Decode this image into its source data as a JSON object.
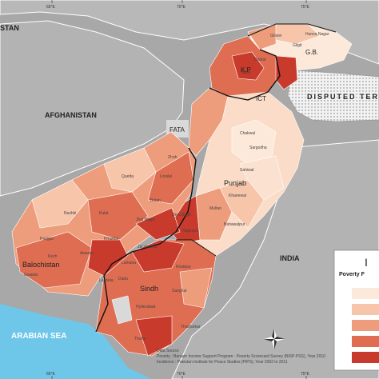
{
  "map": {
    "countries": {
      "tajikistan_fragment": "STAN",
      "afghanistan": "AFGHANISTAN",
      "india": "INDIA",
      "disputed": "DISPUTED TERRITORY"
    },
    "water": {
      "sea": "ARABIAN SEA"
    },
    "regions": {
      "kp": "K.P",
      "gb": "G.B.",
      "ict": "ICT",
      "fata": "FATA",
      "punjab": "Punjab",
      "balochistan": "Balochistan",
      "sindh": "Sindh"
    },
    "longitude_ticks": {
      "top": [
        "65°E",
        "70°E",
        "75°E"
      ],
      "bottom": [
        "65°E",
        "70°E",
        "75°E"
      ]
    },
    "legend": {
      "title_fragment": "I",
      "subtitle_fragment": "Poverty F",
      "swatch_colors": [
        "#fde9d9",
        "#f6c5aa",
        "#ee9d7c",
        "#df6d51",
        "#c83a2c"
      ]
    },
    "source_note": {
      "line1": "Data Source",
      "line2": "Poverty : Benazir Income Support Program - Poverty Scorecard Survey (BISP-PSS), Year 2010",
      "line3": "Incidence : Pakistan Institute for Peace Studies (PIPS), Year 2002 to 2011"
    },
    "districts": [
      "Hunza Nagar",
      "Ghizer",
      "Chitral",
      "Gilgit",
      "Swat",
      "Chakwal",
      "Sargodha",
      "Sahiwal",
      "Nushki",
      "Quetta",
      "Kalat",
      "Khuzdar",
      "Panjgur",
      "Gwadar",
      "Kech",
      "Awaran",
      "Lasbela",
      "Jhal Magsi",
      "Bolan",
      "Loralai",
      "Zhob",
      "Dera Bugti",
      "Khanewal",
      "Bahawalpur",
      "Jacobabad",
      "Larkana",
      "Dadu",
      "Thatta",
      "Tharparkar",
      "Hyderabad",
      "Sanghar",
      "Khairpur",
      "Rajanpur",
      "Multan"
    ],
    "colors": {
      "background": "#a8a8a8",
      "sea": "#6ec6e9",
      "lightest": "#fde9d9",
      "light": "#f6c5aa",
      "medium": "#ee9d7c",
      "dark": "#df6d51",
      "darkest": "#c83a2c"
    }
  }
}
